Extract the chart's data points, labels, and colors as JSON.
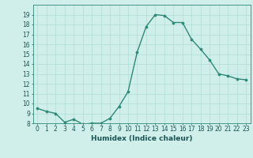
{
  "x": [
    0,
    1,
    2,
    3,
    4,
    5,
    6,
    7,
    8,
    9,
    10,
    11,
    12,
    13,
    14,
    15,
    16,
    17,
    18,
    19,
    20,
    21,
    22,
    23
  ],
  "y": [
    9.5,
    9.2,
    9.0,
    8.1,
    8.4,
    7.9,
    8.0,
    8.0,
    8.5,
    9.7,
    11.2,
    15.2,
    17.8,
    19.0,
    18.9,
    18.2,
    18.2,
    16.5,
    15.5,
    14.4,
    13.0,
    12.8,
    12.5,
    12.4
  ],
  "line_color": "#2d8a78",
  "marker_color": "#2d8a78",
  "bg_color": "#d0eeea",
  "grid_color": "#b0ddd7",
  "xlabel": "Humidex (Indice chaleur)",
  "ylim": [
    8,
    20
  ],
  "xlim": [
    -0.5,
    23.5
  ],
  "yticks": [
    8,
    9,
    10,
    11,
    12,
    13,
    14,
    15,
    16,
    17,
    18,
    19
  ],
  "xticks": [
    0,
    1,
    2,
    3,
    4,
    5,
    6,
    7,
    8,
    9,
    10,
    11,
    12,
    13,
    14,
    15,
    16,
    17,
    18,
    19,
    20,
    21,
    22,
    23
  ],
  "label_fontsize": 6.5,
  "tick_fontsize": 5.5,
  "line_width": 1.0,
  "marker_size": 2.2
}
